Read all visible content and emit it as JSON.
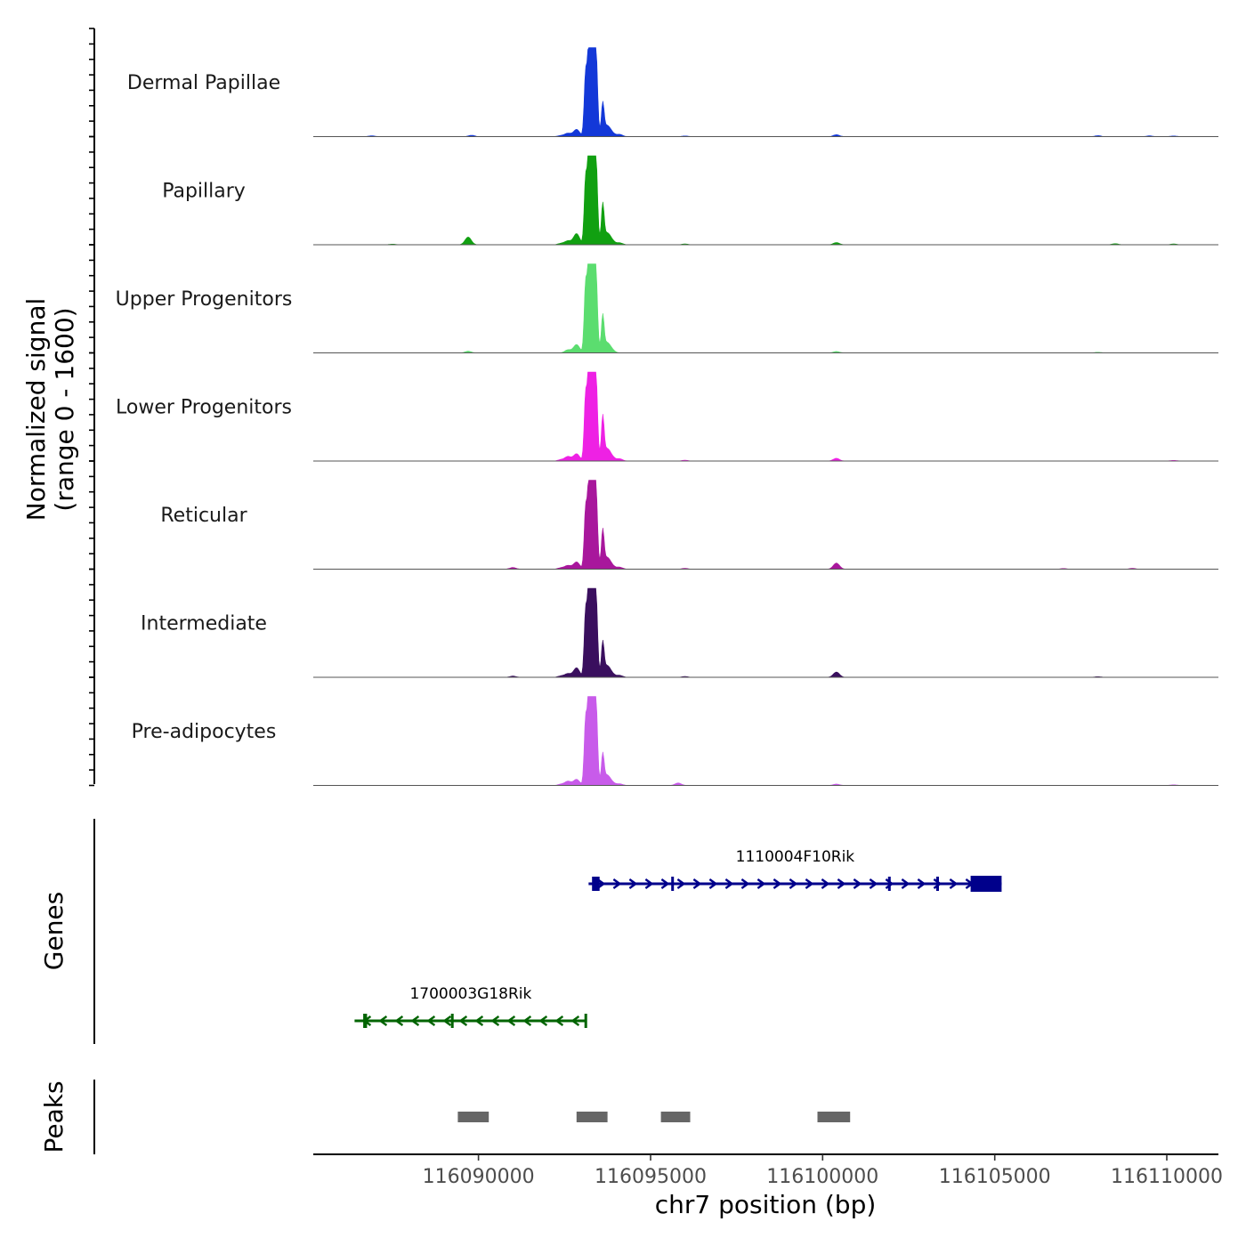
{
  "chart_data": {
    "type": "area",
    "title": "",
    "chromosome": "chr7",
    "xlabel": "chr7 position (bp)",
    "xlim": [
      116085200,
      116111500
    ],
    "x_ticks": [
      116090000,
      116095000,
      116100000,
      116105000,
      116110000
    ],
    "x_tick_labels": [
      "116090000",
      "116095000",
      "116100000",
      "116105000",
      "116110000"
    ],
    "coverage": {
      "ylabel_line1": "Normalized signal",
      "ylabel_line2": "(range 0 - 1600)",
      "ylim": [
        0,
        1600
      ],
      "series": [
        {
          "name": "Dermal Papillae",
          "color": "#1338d8",
          "peaks": [
            [
              116093110,
              1100
            ],
            [
              116093200,
              1450
            ],
            [
              116093280,
              1600
            ],
            [
              116093340,
              1380
            ],
            [
              116093380,
              1500
            ],
            [
              116093440,
              800
            ],
            [
              116093610,
              550
            ],
            [
              116093720,
              180
            ],
            [
              116093860,
              70
            ],
            [
              116094100,
              40
            ],
            [
              116092850,
              130
            ],
            [
              116092600,
              60
            ],
            [
              116092400,
              20
            ],
            [
              116089800,
              25
            ],
            [
              116086900,
              15
            ],
            [
              116100400,
              35
            ],
            [
              116096000,
              12
            ],
            [
              116108000,
              18
            ],
            [
              116109500,
              14
            ],
            [
              116110200,
              12
            ]
          ]
        },
        {
          "name": "Papillary",
          "color": "#11a011",
          "peaks": [
            [
              116093110,
              1150
            ],
            [
              116093200,
              1500
            ],
            [
              116093280,
              1600
            ],
            [
              116093340,
              1400
            ],
            [
              116093380,
              1500
            ],
            [
              116093440,
              800
            ],
            [
              116093610,
              680
            ],
            [
              116093720,
              190
            ],
            [
              116093860,
              80
            ],
            [
              116094100,
              35
            ],
            [
              116092850,
              200
            ],
            [
              116092600,
              70
            ],
            [
              116092400,
              25
            ],
            [
              116089700,
              140
            ],
            [
              116087500,
              12
            ],
            [
              116100400,
              40
            ],
            [
              116096000,
              15
            ],
            [
              116108500,
              20
            ],
            [
              116110200,
              15
            ]
          ]
        },
        {
          "name": "Upper Progenitors",
          "color": "#5bdd6f",
          "peaks": [
            [
              116093110,
              1200
            ],
            [
              116093200,
              1500
            ],
            [
              116093280,
              1600
            ],
            [
              116093340,
              1420
            ],
            [
              116093380,
              1450
            ],
            [
              116093440,
              700
            ],
            [
              116093610,
              630
            ],
            [
              116093720,
              170
            ],
            [
              116093860,
              60
            ],
            [
              116092850,
              150
            ],
            [
              116092600,
              55
            ],
            [
              116089700,
              30
            ],
            [
              116100400,
              25
            ],
            [
              116108000,
              12
            ]
          ]
        },
        {
          "name": "Lower Progenitors",
          "color": "#ee21e4",
          "peaks": [
            [
              116093110,
              1150
            ],
            [
              116093200,
              1480
            ],
            [
              116093280,
              1600
            ],
            [
              116093340,
              1400
            ],
            [
              116093380,
              1450
            ],
            [
              116093440,
              800
            ],
            [
              116093610,
              750
            ],
            [
              116093720,
              200
            ],
            [
              116093860,
              80
            ],
            [
              116094100,
              40
            ],
            [
              116092850,
              130
            ],
            [
              116092600,
              80
            ],
            [
              116092400,
              25
            ],
            [
              116100400,
              50
            ],
            [
              116096000,
              15
            ],
            [
              116110200,
              12
            ]
          ]
        },
        {
          "name": "Reticular",
          "color": "#a8179c",
          "peaks": [
            [
              116093110,
              1050
            ],
            [
              116093200,
              1400
            ],
            [
              116093280,
              1500
            ],
            [
              116093340,
              1300
            ],
            [
              116093380,
              1360
            ],
            [
              116093440,
              750
            ],
            [
              116093610,
              650
            ],
            [
              116093720,
              190
            ],
            [
              116093860,
              70
            ],
            [
              116094100,
              35
            ],
            [
              116092850,
              130
            ],
            [
              116092600,
              65
            ],
            [
              116092400,
              25
            ],
            [
              116091000,
              30
            ],
            [
              116100400,
              110
            ],
            [
              116096000,
              15
            ],
            [
              116107000,
              12
            ],
            [
              116109000,
              15
            ]
          ]
        },
        {
          "name": "Intermediate",
          "color": "#3a0f5e",
          "peaks": [
            [
              116093110,
              1150
            ],
            [
              116093200,
              1500
            ],
            [
              116093280,
              1600
            ],
            [
              116093340,
              1400
            ],
            [
              116093380,
              1450
            ],
            [
              116093440,
              780
            ],
            [
              116093610,
              580
            ],
            [
              116093720,
              190
            ],
            [
              116093860,
              70
            ],
            [
              116094100,
              35
            ],
            [
              116092850,
              170
            ],
            [
              116092600,
              65
            ],
            [
              116092400,
              25
            ],
            [
              116091000,
              22
            ],
            [
              116100400,
              95
            ],
            [
              116096000,
              15
            ],
            [
              116108000,
              12
            ]
          ]
        },
        {
          "name": "Pre-adipocytes",
          "color": "#c85bea",
          "peaks": [
            [
              116093110,
              1150
            ],
            [
              116093200,
              1480
            ],
            [
              116093280,
              1600
            ],
            [
              116093340,
              1420
            ],
            [
              116093380,
              1450
            ],
            [
              116093440,
              780
            ],
            [
              116093610,
              520
            ],
            [
              116093720,
              170
            ],
            [
              116093860,
              60
            ],
            [
              116094100,
              30
            ],
            [
              116092850,
              110
            ],
            [
              116092600,
              75
            ],
            [
              116092400,
              22
            ],
            [
              116095800,
              45
            ],
            [
              116100400,
              25
            ],
            [
              116110200,
              12
            ]
          ]
        }
      ]
    },
    "genes": {
      "title": "Genes",
      "items": [
        {
          "name": "1110004F10Rik",
          "strand": "+",
          "color": "#00008b",
          "start": 116093200,
          "end": 116105200,
          "exons": [
            [
              116093300,
              116093520
            ],
            [
              116095600,
              116095660
            ],
            [
              116101900,
              116101960
            ],
            [
              116103300,
              116103380
            ],
            [
              116104300,
              116105200
            ]
          ]
        },
        {
          "name": "1700003G18Rik",
          "strand": "-",
          "color": "#006400",
          "start": 116086400,
          "end": 116093150,
          "exons": [
            [
              116086650,
              116086760
            ],
            [
              116089200,
              116089260
            ],
            [
              116093080,
              116093150
            ]
          ]
        }
      ]
    },
    "peaks": {
      "title": "Peaks",
      "color": "#666666",
      "regions": [
        [
          116089400,
          116090300
        ],
        [
          116092850,
          116093750
        ],
        [
          116095300,
          116096150
        ],
        [
          116099850,
          116100800
        ]
      ]
    }
  }
}
